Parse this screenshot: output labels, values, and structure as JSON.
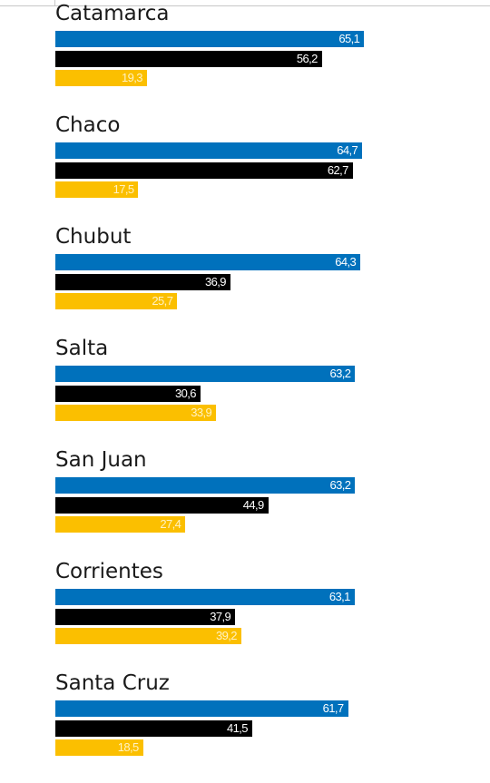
{
  "chart_data": {
    "type": "bar",
    "orientation": "horizontal",
    "categories": [
      "Catamarca",
      "Chaco",
      "Chubut",
      "Salta",
      "San Juan",
      "Corrientes",
      "Santa Cruz"
    ],
    "series": [
      {
        "color": "#0071bc",
        "label_color": "#ffffff",
        "values": [
          "65,1",
          "64,7",
          "64,3",
          "63,2",
          "63,2",
          "63,1",
          "61,7"
        ]
      },
      {
        "color": "#000000",
        "label_color": "#ffffff",
        "values": [
          "56,2",
          "62,7",
          "36,9",
          "30,6",
          "44,9",
          "37,9",
          "41,5"
        ]
      },
      {
        "color": "#fbbf00",
        "label_color": "#fff2c4",
        "values": [
          "19,3",
          "17,5",
          "25,7",
          "33,9",
          "27,4",
          "39,2",
          "18,5"
        ]
      }
    ],
    "xlim": [
      0,
      100
    ],
    "grid": false,
    "legend": "none"
  }
}
